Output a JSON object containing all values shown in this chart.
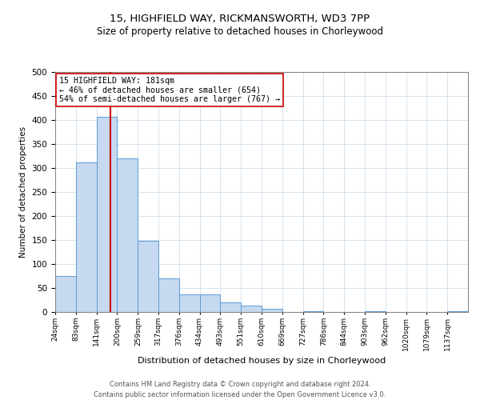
{
  "title1": "15, HIGHFIELD WAY, RICKMANSWORTH, WD3 7PP",
  "title2": "Size of property relative to detached houses in Chorleywood",
  "xlabel": "Distribution of detached houses by size in Chorleywood",
  "ylabel": "Number of detached properties",
  "bin_edges": [
    24,
    83,
    141,
    200,
    259,
    317,
    376,
    434,
    493,
    551,
    610,
    669,
    727,
    786,
    844,
    903,
    962,
    1020,
    1079,
    1137,
    1196
  ],
  "bar_heights": [
    75,
    311,
    407,
    320,
    148,
    70,
    36,
    36,
    20,
    13,
    6,
    0,
    2,
    0,
    0,
    2,
    0,
    0,
    0,
    2
  ],
  "bar_color": "#c6d9f0",
  "bar_edge_color": "#5b9bd5",
  "vline_x": 181,
  "vline_color": "#cc0000",
  "annotation_line1": "15 HIGHFIELD WAY: 181sqm",
  "annotation_line2": "← 46% of detached houses are smaller (654)",
  "annotation_line3": "54% of semi-detached houses are larger (767) →",
  "annotation_box_color": "#ffffff",
  "annotation_box_edge": "#cc0000",
  "ylim": [
    0,
    500
  ],
  "yticks": [
    0,
    50,
    100,
    150,
    200,
    250,
    300,
    350,
    400,
    450,
    500
  ],
  "grid_color": "#c8d8e8",
  "title1_fontsize": 9.5,
  "title2_fontsize": 8.5,
  "footer1": "Contains HM Land Registry data © Crown copyright and database right 2024.",
  "footer2": "Contains public sector information licensed under the Open Government Licence v3.0."
}
